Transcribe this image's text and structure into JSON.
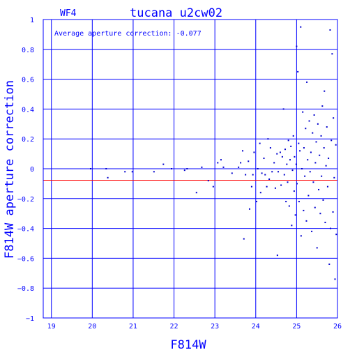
{
  "chart_data": {
    "type": "scatter",
    "title": "tucana_u2cw02",
    "chip_label": "WF4",
    "annotation": "Average aperture correction: -0.077",
    "xlabel": "F814W",
    "ylabel": "F814W aperture correction",
    "xlim": [
      18.8,
      26.0
    ],
    "ylim": [
      -1.0,
      1.0
    ],
    "xticks": [
      19,
      20,
      21,
      22,
      23,
      24,
      25,
      26
    ],
    "yticks": [
      -1,
      -0.8,
      -0.6,
      -0.4,
      -0.2,
      0,
      0.2,
      0.4,
      0.6,
      0.8,
      1
    ],
    "ytick_labels": [
      "−1",
      "−0.8",
      "−0.6",
      "−0.4",
      "−0.2",
      "0",
      "0.2",
      "0.4",
      "0.6",
      "0.8",
      "1"
    ],
    "grid": true,
    "reference_line": {
      "y": -0.077,
      "color": "#ff0000"
    },
    "colors": {
      "axes": "#0000ff",
      "points": "#0000cc",
      "average": "#ff0000"
    },
    "points": [
      [
        19.96,
        0.0
      ],
      [
        20.34,
        0.0
      ],
      [
        20.38,
        -0.06
      ],
      [
        20.8,
        -0.02
      ],
      [
        20.98,
        -0.02
      ],
      [
        21.51,
        -0.02
      ],
      [
        21.74,
        0.03
      ],
      [
        21.94,
        0.0
      ],
      [
        22.26,
        -0.01
      ],
      [
        22.32,
        0.0
      ],
      [
        22.55,
        -0.16
      ],
      [
        22.68,
        0.01
      ],
      [
        22.84,
        -0.08
      ],
      [
        22.96,
        -0.12
      ],
      [
        23.07,
        0.04
      ],
      [
        23.15,
        0.06
      ],
      [
        23.21,
        0.01
      ],
      [
        23.42,
        -0.03
      ],
      [
        23.58,
        0.01
      ],
      [
        23.63,
        0.04
      ],
      [
        23.68,
        0.12
      ],
      [
        23.71,
        -0.47
      ],
      [
        23.75,
        -0.04
      ],
      [
        23.82,
        0.05
      ],
      [
        23.85,
        -0.27
      ],
      [
        23.9,
        -0.12
      ],
      [
        23.93,
        -0.04
      ],
      [
        23.96,
        0.11
      ],
      [
        24.02,
        -0.22
      ],
      [
        24.05,
        0.0
      ],
      [
        24.1,
        0.17
      ],
      [
        24.12,
        -0.16
      ],
      [
        24.15,
        -0.03
      ],
      [
        24.2,
        0.07
      ],
      [
        24.23,
        -0.04
      ],
      [
        24.27,
        -0.12
      ],
      [
        24.3,
        0.2
      ],
      [
        24.33,
        -0.07
      ],
      [
        24.36,
        0.14
      ],
      [
        24.4,
        -0.02
      ],
      [
        24.45,
        0.04
      ],
      [
        24.48,
        -0.13
      ],
      [
        24.52,
        0.1
      ],
      [
        24.53,
        -0.58
      ],
      [
        24.55,
        -0.02
      ],
      [
        24.6,
        0.11
      ],
      [
        24.62,
        -0.11
      ],
      [
        24.65,
        0.08
      ],
      [
        24.68,
        0.4
      ],
      [
        24.7,
        -0.04
      ],
      [
        24.72,
        0.13
      ],
      [
        24.74,
        -0.22
      ],
      [
        24.76,
        0.03
      ],
      [
        24.78,
        -0.09
      ],
      [
        24.8,
        0.19
      ],
      [
        24.82,
        -0.25
      ],
      [
        24.84,
        0.06
      ],
      [
        24.86,
        0.15
      ],
      [
        24.88,
        -0.38
      ],
      [
        24.9,
        -0.01
      ],
      [
        24.92,
        0.22
      ],
      [
        24.94,
        -0.15
      ],
      [
        24.95,
        0.08
      ],
      [
        24.97,
        -0.31
      ],
      [
        24.99,
        0.03
      ],
      [
        25.0,
        0.82
      ],
      [
        25.01,
        -0.1
      ],
      [
        25.03,
        0.65
      ],
      [
        25.05,
        0.17
      ],
      [
        25.06,
        -0.22
      ],
      [
        25.08,
        0.12
      ],
      [
        25.1,
        0.95
      ],
      [
        25.11,
        -0.45
      ],
      [
        25.13,
        0.0
      ],
      [
        25.15,
        0.38
      ],
      [
        25.17,
        -0.28
      ],
      [
        25.18,
        0.14
      ],
      [
        25.2,
        -0.05
      ],
      [
        25.22,
        0.27
      ],
      [
        25.24,
        -0.35
      ],
      [
        25.25,
        0.58
      ],
      [
        25.27,
        0.06
      ],
      [
        25.29,
        -0.18
      ],
      [
        25.31,
        0.32
      ],
      [
        25.33,
        -0.02
      ],
      [
        25.35,
        0.11
      ],
      [
        25.37,
        -0.42
      ],
      [
        25.39,
        0.24
      ],
      [
        25.41,
        -0.09
      ],
      [
        25.43,
        0.36
      ],
      [
        25.45,
        -0.26
      ],
      [
        25.46,
        0.04
      ],
      [
        25.48,
        0.18
      ],
      [
        25.5,
        -0.53
      ],
      [
        25.52,
        0.3
      ],
      [
        25.54,
        -0.14
      ],
      [
        25.56,
        0.09
      ],
      [
        25.58,
        -0.3
      ],
      [
        25.6,
        0.22
      ],
      [
        25.61,
        -0.05
      ],
      [
        25.63,
        0.42
      ],
      [
        25.65,
        -0.21
      ],
      [
        25.67,
        0.14
      ],
      [
        25.68,
        0.52
      ],
      [
        25.7,
        -0.36
      ],
      [
        25.72,
        0.02
      ],
      [
        25.74,
        0.28
      ],
      [
        25.76,
        -0.12
      ],
      [
        25.78,
        0.07
      ],
      [
        25.8,
        -0.64
      ],
      [
        25.82,
        0.93
      ],
      [
        25.83,
        -0.4
      ],
      [
        25.85,
        0.19
      ],
      [
        25.87,
        0.77
      ],
      [
        25.89,
        -0.29
      ],
      [
        25.9,
        0.34
      ],
      [
        25.92,
        -0.06
      ],
      [
        25.94,
        -0.74
      ],
      [
        25.96,
        0.16
      ],
      [
        25.97,
        -0.44
      ]
    ]
  }
}
